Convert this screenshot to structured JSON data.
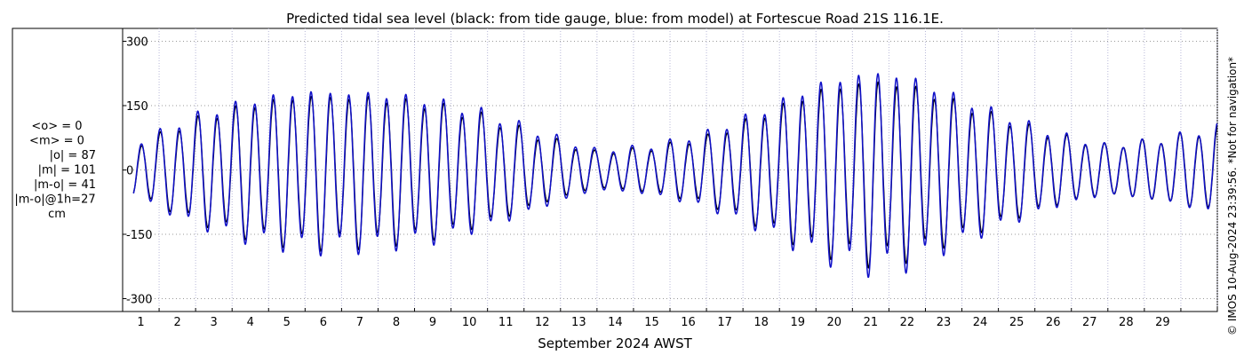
{
  "chart_data": {
    "type": "line",
    "title": "Predicted tidal sea level (black: from tide gauge, blue: from model) at Fortescue Road 21S 116.1E.",
    "xlabel": "September 2024 AWST",
    "ylabel": "",
    "x_ticks": [
      "1",
      "2",
      "3",
      "4",
      "5",
      "6",
      "7",
      "8",
      "9",
      "10",
      "11",
      "12",
      "13",
      "14",
      "15",
      "16",
      "17",
      "18",
      "19",
      "20",
      "21",
      "22",
      "23",
      "24",
      "25",
      "26",
      "27",
      "28",
      "29"
    ],
    "y_ticks": [
      "300",
      "150",
      "0",
      "-150",
      "-300"
    ],
    "ylim": [
      -330,
      330
    ],
    "xlim_days": [
      0.0,
      30.0
    ],
    "grid": true,
    "colors": {
      "gauge": "#000000",
      "model": "#1010c8",
      "grid": "#999999"
    },
    "series": [
      {
        "name": "from tide gauge",
        "color": "#000000",
        "amplitude_envelope_cm": [
          [
            0.3,
            55
          ],
          [
            2.0,
            115
          ],
          [
            3.5,
            150
          ],
          [
            5.0,
            170
          ],
          [
            7.0,
            165
          ],
          [
            8.5,
            150
          ],
          [
            10.0,
            120
          ],
          [
            11.5,
            75
          ],
          [
            13.0,
            40
          ],
          [
            14.5,
            50
          ],
          [
            16.0,
            75
          ],
          [
            17.5,
            125
          ],
          [
            19.0,
            180
          ],
          [
            20.5,
            205
          ],
          [
            21.5,
            195
          ],
          [
            22.5,
            165
          ],
          [
            24.0,
            120
          ],
          [
            25.5,
            80
          ],
          [
            27.0,
            55
          ],
          [
            28.5,
            70
          ],
          [
            30.0,
            95
          ]
        ]
      },
      {
        "name": "from model",
        "color": "#1010c8",
        "amplitude_envelope_cm": [
          [
            0.3,
            60
          ],
          [
            2.0,
            125
          ],
          [
            3.5,
            160
          ],
          [
            5.0,
            180
          ],
          [
            7.0,
            175
          ],
          [
            8.5,
            160
          ],
          [
            10.0,
            130
          ],
          [
            11.5,
            85
          ],
          [
            13.0,
            45
          ],
          [
            14.5,
            55
          ],
          [
            16.0,
            85
          ],
          [
            17.5,
            135
          ],
          [
            19.0,
            195
          ],
          [
            20.5,
            225
          ],
          [
            21.5,
            215
          ],
          [
            22.5,
            180
          ],
          [
            24.0,
            130
          ],
          [
            25.5,
            85
          ],
          [
            27.0,
            55
          ],
          [
            28.5,
            70
          ],
          [
            30.0,
            100
          ]
        ]
      }
    ],
    "stats": {
      "lines": [
        "<o> = 0",
        "<m> = 0",
        "|o| = 87",
        "|m| = 101",
        "|m-o| = 41",
        "|m-o|@1h=27",
        "cm"
      ]
    },
    "side_note": "© IMOS 10-Aug-2024 23:39:56. *Not for navigation*"
  }
}
